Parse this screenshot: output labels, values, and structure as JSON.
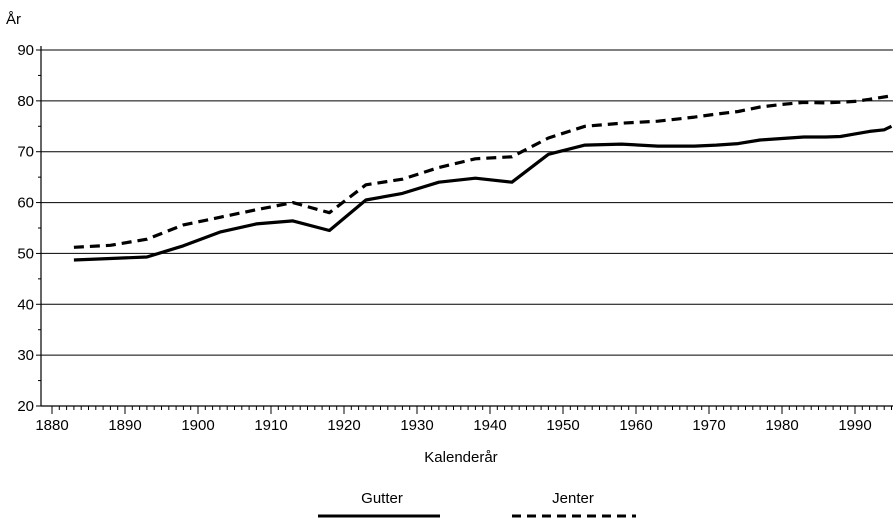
{
  "chart_data": {
    "type": "line",
    "ylabel": "År",
    "xlabel": "Kalenderår",
    "xlim": [
      1880,
      1995
    ],
    "ylim": [
      20,
      90
    ],
    "x_ticks": [
      1880,
      1890,
      1900,
      1910,
      1920,
      1930,
      1940,
      1950,
      1960,
      1970,
      1980,
      1990
    ],
    "y_ticks": [
      20,
      30,
      40,
      50,
      60,
      70,
      80,
      90
    ],
    "grid": "horizontal",
    "legend_position": "bottom",
    "series": [
      {
        "name": "Gutter",
        "style": "solid",
        "x": [
          1883,
          1888,
          1893,
          1898,
          1903,
          1908,
          1913,
          1918,
          1923,
          1928,
          1933,
          1938,
          1943,
          1948,
          1953,
          1958,
          1963,
          1968,
          1971,
          1974,
          1977,
          1980,
          1983,
          1986,
          1988,
          1990,
          1992,
          1994,
          1995
        ],
        "y": [
          48.7,
          49.0,
          49.3,
          51.5,
          54.2,
          55.8,
          56.4,
          54.5,
          60.5,
          61.8,
          64.0,
          64.8,
          64.0,
          69.5,
          71.3,
          71.5,
          71.1,
          71.1,
          71.3,
          71.6,
          72.3,
          72.6,
          72.9,
          72.9,
          73.0,
          73.5,
          74.0,
          74.3,
          75.0
        ]
      },
      {
        "name": "Jenter",
        "style": "dashed",
        "x": [
          1883,
          1888,
          1893,
          1898,
          1903,
          1908,
          1913,
          1918,
          1923,
          1928,
          1933,
          1938,
          1943,
          1948,
          1953,
          1958,
          1963,
          1968,
          1971,
          1974,
          1977,
          1980,
          1983,
          1986,
          1990,
          1992,
          1995
        ],
        "y": [
          51.2,
          51.6,
          52.8,
          55.6,
          57.1,
          58.6,
          60.0,
          58.0,
          63.5,
          64.6,
          66.9,
          68.6,
          69.0,
          72.7,
          75.0,
          75.6,
          76.0,
          76.8,
          77.4,
          77.9,
          78.8,
          79.3,
          79.7,
          79.6,
          79.9,
          80.3,
          81.0
        ]
      }
    ]
  }
}
